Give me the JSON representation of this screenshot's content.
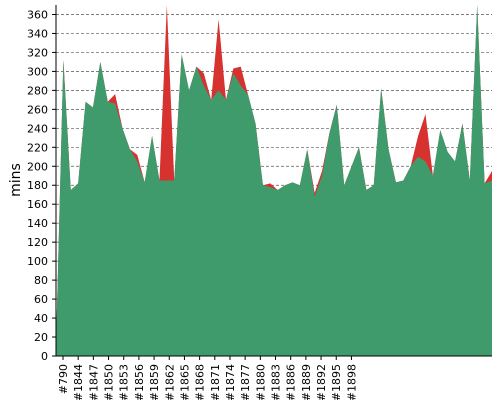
{
  "chart_data": {
    "type": "area",
    "title": "",
    "xlabel": "",
    "ylabel": "mins",
    "ylim": [
      0,
      370
    ],
    "yticks": [
      0,
      20,
      40,
      60,
      80,
      100,
      120,
      140,
      160,
      180,
      200,
      220,
      240,
      260,
      280,
      300,
      320,
      340,
      360
    ],
    "grid": true,
    "x_tick_labels": [
      "#790",
      "#1844",
      "#1847",
      "#1850",
      "#1853",
      "#1856",
      "#1859",
      "#1862",
      "#1865",
      "#1868",
      "#1871",
      "#1874",
      "#1877",
      "#1880",
      "#1883",
      "#1886",
      "#1889",
      "#1892",
      "#1895",
      "#1898"
    ],
    "colors": {
      "above": "#3f9b6b",
      "below": "#d63230",
      "grid": "#555555"
    },
    "series": [
      {
        "values": [
          10,
          312,
          175,
          182,
          268,
          262,
          310,
          268,
          276,
          240,
          218,
          212,
          183,
          232,
          185,
          372,
          185,
          318,
          280,
          305,
          298,
          270,
          355,
          270,
          303,
          305,
          275,
          245,
          180,
          182,
          175,
          180,
          183,
          180,
          218,
          172,
          195,
          235,
          265,
          180,
          200,
          220,
          175,
          180,
          282,
          218,
          183,
          185,
          200,
          232,
          255,
          190,
          238,
          215,
          205,
          245,
          185,
          375,
          182,
          195
        ]
      },
      {
        "values": [
          10,
          312,
          175,
          182,
          268,
          262,
          310,
          268,
          266,
          240,
          218,
          205,
          183,
          232,
          185,
          185,
          185,
          318,
          280,
          305,
          285,
          270,
          280,
          270,
          298,
          285,
          275,
          245,
          180,
          178,
          175,
          180,
          183,
          180,
          218,
          168,
          190,
          235,
          265,
          180,
          200,
          220,
          175,
          180,
          282,
          218,
          183,
          185,
          200,
          210,
          205,
          190,
          238,
          215,
          205,
          245,
          185,
          375,
          182,
          185
        ]
      }
    ]
  }
}
